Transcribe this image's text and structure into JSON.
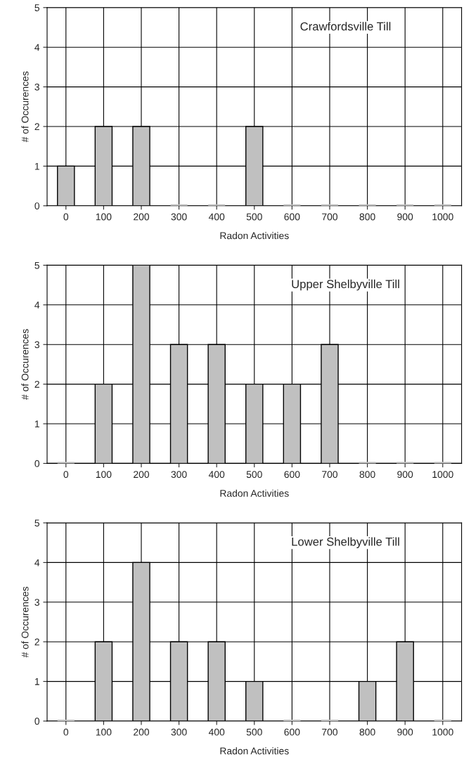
{
  "chart_data": [
    {
      "type": "bar",
      "title": "Crawfordsville Till",
      "xlabel": "Radon Activities",
      "ylabel": "# of Occurences",
      "categories": [
        "0",
        "100",
        "200",
        "300",
        "400",
        "500",
        "600",
        "700",
        "800",
        "900",
        "1000"
      ],
      "values": [
        1,
        2,
        2,
        0,
        0,
        2,
        0,
        0,
        0,
        0,
        0
      ],
      "color": "#c0c0c0",
      "ylim": [
        0,
        5
      ],
      "yticks": [
        0,
        1,
        2,
        3,
        4,
        5
      ],
      "grid": true
    },
    {
      "type": "bar",
      "title": "Upper Shelbyville Till",
      "xlabel": "Radon Activities",
      "ylabel": "# of Occurences",
      "categories": [
        "0",
        "100",
        "200",
        "300",
        "400",
        "500",
        "600",
        "700",
        "800",
        "900",
        "1000"
      ],
      "values": [
        0,
        2,
        5,
        3,
        3,
        2,
        2,
        3,
        0,
        0,
        0
      ],
      "color": "#c0c0c0",
      "ylim": [
        0,
        5
      ],
      "yticks": [
        0,
        1,
        2,
        3,
        4,
        5
      ],
      "grid": true
    },
    {
      "type": "bar",
      "title": "Lower Shelbyville Till",
      "xlabel": "Radon Activities",
      "ylabel": "# of Occurences",
      "categories": [
        "0",
        "100",
        "200",
        "300",
        "400",
        "500",
        "600",
        "700",
        "800",
        "900",
        "1000"
      ],
      "values": [
        0,
        2,
        4,
        2,
        2,
        1,
        0,
        0,
        1,
        2,
        0
      ],
      "color": "#c0c0c0",
      "ylim": [
        0,
        5
      ],
      "yticks": [
        0,
        1,
        2,
        3,
        4,
        5
      ],
      "grid": true
    }
  ]
}
